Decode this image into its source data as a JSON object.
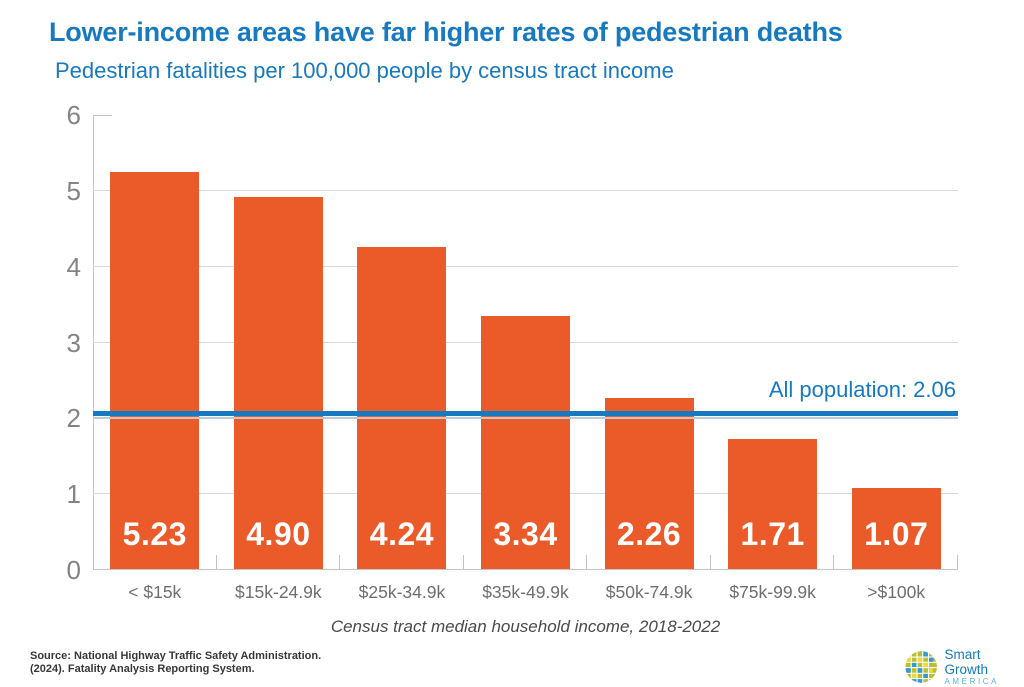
{
  "header": {
    "title": "Lower-income areas have far higher rates of pedestrian deaths",
    "subtitle": "Pedestrian fatalities per 100,000 people by census tract income"
  },
  "chart_data": {
    "type": "bar",
    "title": "Lower-income areas have far higher rates of pedestrian deaths",
    "subtitle": "Pedestrian fatalities per 100,000 people by census tract income",
    "categories": [
      "< $15k",
      "$15k-24.9k",
      "$25k-34.9k",
      "$35k-49.9k",
      "$50k-74.9k",
      "$75k-99.9k",
      ">$100k"
    ],
    "values": [
      5.23,
      4.9,
      4.24,
      3.34,
      2.26,
      1.71,
      1.07
    ],
    "value_labels": [
      "5.23",
      "4.90",
      "4.24",
      "3.34",
      "2.26",
      "1.71",
      "1.07"
    ],
    "xlabel": "Census tract median household income, 2018-2022",
    "ylabel": "",
    "ylim": [
      0,
      6
    ],
    "yticks": [
      0,
      1,
      2,
      3,
      4,
      5,
      6
    ],
    "grid": true,
    "legend": "none",
    "reference_line": {
      "value": 2.06,
      "label": "All population: 2.06"
    },
    "bar_color": "#EA5B29",
    "accent_color": "#1779BF",
    "bar_width_frac": 0.72
  },
  "footer": {
    "source_line1": "Source: National Highway Traffic Safety Administration.",
    "source_line2": "(2024). Fatality Analysis Reporting System.",
    "logo": {
      "name": "Smart Growth America",
      "line1": "Smart Growth",
      "line2": "AMERICA"
    }
  }
}
